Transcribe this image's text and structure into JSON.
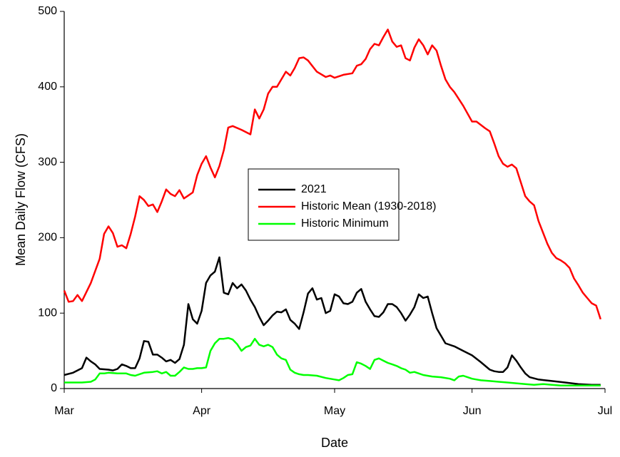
{
  "chart_data": {
    "type": "line",
    "xlabel": "Date",
    "ylabel": "Mean Daily Flow (CFS)",
    "xlim": [
      0,
      122
    ],
    "xticks": [
      {
        "value": 0,
        "label": "Mar"
      },
      {
        "value": 31,
        "label": "Apr"
      },
      {
        "value": 61,
        "label": "May"
      },
      {
        "value": 92,
        "label": "Jun"
      },
      {
        "value": 122,
        "label": "Jul"
      }
    ],
    "ylim": [
      0,
      500
    ],
    "yticks": [
      0,
      100,
      200,
      300,
      400,
      500
    ],
    "legend": "center",
    "series": [
      {
        "name": "2021",
        "color": "#000000",
        "x": [
          0,
          2,
          4,
          5,
          6,
          7,
          8,
          10,
          11,
          12,
          13,
          14,
          15,
          16,
          17,
          18,
          19,
          20,
          21,
          22,
          23,
          24,
          25,
          26,
          27,
          28,
          29,
          30,
          31,
          32,
          33,
          34,
          35,
          36,
          37,
          38,
          39,
          40,
          41,
          42,
          43,
          44,
          45,
          46,
          47,
          48,
          49,
          50,
          51,
          52,
          53,
          54,
          55,
          56,
          57,
          58,
          59,
          60,
          61,
          62,
          63,
          64,
          65,
          66,
          67,
          68,
          69,
          70,
          71,
          72,
          73,
          74,
          75,
          76,
          77,
          78,
          79,
          80,
          81,
          82,
          83,
          84,
          85,
          86,
          88,
          90,
          92,
          94,
          96,
          97,
          98,
          99,
          100,
          101,
          102,
          103,
          104,
          105,
          107,
          110,
          113,
          116,
          119,
          121
        ],
        "values": [
          18,
          21,
          27,
          41,
          36,
          32,
          26,
          25,
          24,
          26,
          32,
          30,
          27,
          27,
          40,
          63,
          62,
          45,
          45,
          41,
          36,
          38,
          34,
          39,
          58,
          112,
          92,
          86,
          103,
          140,
          150,
          155,
          174,
          127,
          125,
          140,
          133,
          138,
          130,
          118,
          108,
          95,
          84,
          90,
          97,
          102,
          101,
          105,
          91,
          86,
          79,
          101,
          126,
          133,
          118,
          120,
          100,
          103,
          125,
          122,
          113,
          112,
          115,
          127,
          132,
          115,
          105,
          96,
          95,
          101,
          112,
          112,
          108,
          100,
          90,
          98,
          108,
          125,
          120,
          122,
          100,
          80,
          70,
          60,
          56,
          50,
          44,
          35,
          25,
          23,
          22,
          22,
          28,
          44,
          37,
          28,
          20,
          15,
          12,
          10,
          8,
          6,
          5,
          5
        ]
      },
      {
        "name": "Historic Mean (1930-2018)",
        "color": "#ff0000",
        "x": [
          0,
          1,
          2,
          3,
          4,
          6,
          8,
          9,
          10,
          11,
          12,
          13,
          14,
          15,
          16,
          17,
          18,
          19,
          20,
          21,
          22,
          23,
          24,
          25,
          26,
          27,
          28,
          29,
          30,
          31,
          32,
          33,
          34,
          35,
          36,
          37,
          38,
          40,
          42,
          43,
          44,
          45,
          46,
          47,
          48,
          50,
          51,
          52,
          53,
          54,
          55,
          57,
          59,
          60,
          61,
          63,
          65,
          66,
          67,
          68,
          69,
          70,
          71,
          72,
          73,
          74,
          75,
          76,
          77,
          78,
          79,
          80,
          81,
          82,
          83,
          84,
          85,
          86,
          87,
          88,
          90,
          92,
          93,
          95,
          96,
          97,
          98,
          99,
          100,
          101,
          102,
          104,
          105,
          106,
          107,
          108,
          109,
          110,
          111,
          112,
          113,
          114,
          115,
          116,
          117,
          118,
          119,
          120,
          121
        ],
        "values": [
          130,
          115,
          116,
          124,
          116,
          140,
          172,
          205,
          215,
          206,
          188,
          190,
          186,
          205,
          228,
          255,
          250,
          242,
          244,
          234,
          248,
          264,
          258,
          255,
          263,
          252,
          256,
          260,
          283,
          298,
          308,
          293,
          280,
          295,
          316,
          346,
          348,
          343,
          337,
          370,
          358,
          370,
          391,
          400,
          400,
          420,
          415,
          425,
          438,
          439,
          435,
          420,
          413,
          415,
          412,
          416,
          418,
          428,
          430,
          437,
          450,
          457,
          455,
          466,
          476,
          460,
          453,
          455,
          438,
          435,
          452,
          463,
          455,
          443,
          455,
          448,
          428,
          410,
          400,
          393,
          375,
          354,
          354,
          345,
          341,
          325,
          308,
          298,
          294,
          297,
          292,
          255,
          248,
          243,
          222,
          207,
          192,
          180,
          173,
          170,
          166,
          160,
          146,
          137,
          127,
          120,
          113,
          110,
          92
        ]
      },
      {
        "name": "Historic Minimum",
        "color": "#00ff00",
        "x": [
          0,
          4,
          6,
          7,
          8,
          9,
          10,
          12,
          14,
          15,
          16,
          18,
          20,
          21,
          22,
          23,
          24,
          25,
          26,
          27,
          28,
          29,
          30,
          31,
          32,
          33,
          34,
          35,
          36,
          37,
          38,
          39,
          40,
          41,
          42,
          43,
          44,
          45,
          46,
          47,
          48,
          49,
          50,
          51,
          52,
          53,
          54,
          55,
          57,
          59,
          61,
          62,
          63,
          64,
          65,
          66,
          67,
          68,
          69,
          70,
          71,
          72,
          73,
          74,
          75,
          76,
          77,
          78,
          79,
          80,
          81,
          83,
          85,
          87,
          88,
          89,
          90,
          91,
          92,
          93,
          94,
          96,
          98,
          100,
          102,
          104,
          106,
          108,
          110,
          112,
          115,
          118,
          121
        ],
        "values": [
          8,
          8,
          9,
          12,
          20,
          20,
          21,
          20,
          20,
          18,
          17,
          21,
          22,
          23,
          20,
          22,
          17,
          17,
          22,
          28,
          26,
          26,
          27,
          27,
          28,
          50,
          60,
          66,
          66,
          67,
          65,
          59,
          50,
          55,
          57,
          66,
          58,
          56,
          58,
          55,
          45,
          40,
          38,
          25,
          21,
          19,
          18,
          18,
          17,
          14,
          12,
          11,
          14,
          18,
          19,
          35,
          33,
          30,
          26,
          38,
          40,
          37,
          34,
          32,
          30,
          27,
          25,
          21,
          22,
          20,
          18,
          16,
          15,
          13,
          11,
          16,
          17,
          15,
          13,
          12,
          11,
          10,
          9,
          8,
          7,
          6,
          5,
          6,
          5,
          4,
          4,
          4,
          4
        ]
      }
    ]
  }
}
